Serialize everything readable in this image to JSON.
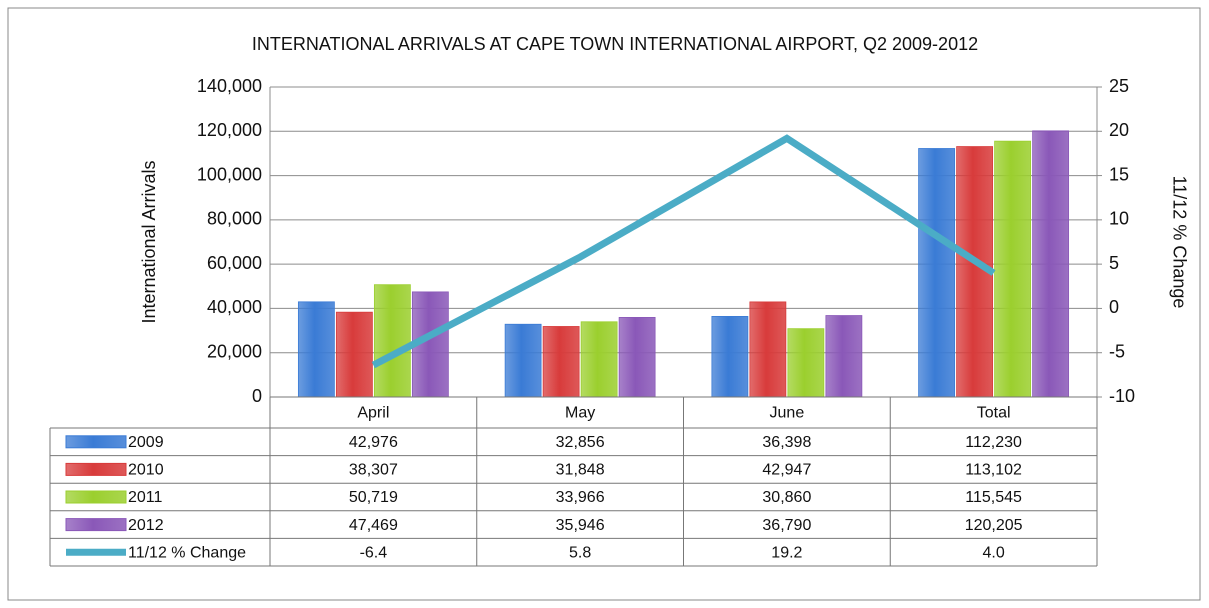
{
  "chart_data": {
    "type": "bar",
    "title": "INTERNATIONAL ARRIVALS AT CAPE TOWN INTERNATIONAL AIRPORT, Q2 2009-2012",
    "y_label": "International Arrivals",
    "y2_label": "11/12 % Change",
    "categories": [
      "April",
      "May",
      "June",
      "Total"
    ],
    "series": [
      {
        "name": "2009",
        "color": "#3a7bd5",
        "values": [
          42976,
          32856,
          36398,
          112230
        ],
        "value_labels": [
          "42,976",
          "32,856",
          "36,398",
          "112,230"
        ]
      },
      {
        "name": "2010",
        "color": "#d83b3b",
        "values": [
          38307,
          31848,
          42947,
          113102
        ],
        "value_labels": [
          "38,307",
          "31,848",
          "42,947",
          "113,102"
        ]
      },
      {
        "name": "2011",
        "color": "#9bcf2e",
        "values": [
          50719,
          33966,
          30860,
          115545
        ],
        "value_labels": [
          "50,719",
          "33,966",
          "30,860",
          "115,545"
        ]
      },
      {
        "name": "2012",
        "color": "#8a58b8",
        "values": [
          47469,
          35946,
          36790,
          120205
        ],
        "value_labels": [
          "47,469",
          "35,946",
          "36,790",
          "120,205"
        ]
      },
      {
        "name": "11/12 % Change",
        "color": "#4bacc6",
        "type": "line",
        "axis": "y2",
        "values": [
          -6.4,
          5.8,
          19.2,
          4.0
        ],
        "value_labels": [
          "-6.4",
          "5.8",
          "19.2",
          "4.0"
        ]
      }
    ],
    "ylim": [
      0,
      140000
    ],
    "yticks": [
      0,
      {
        "value": 20000,
        "label": "20,000"
      },
      {
        "value": 40000,
        "label": "40,000"
      },
      {
        "value": 60000,
        "label": "60,000"
      },
      {
        "value": 80000,
        "label": "80,000"
      },
      {
        "value": 100000,
        "label": "100,000"
      },
      {
        "value": 120000,
        "label": "120,000"
      },
      {
        "value": 140000,
        "label": "140,000"
      }
    ],
    "y2lim": [
      -10,
      25
    ],
    "y2ticks": [
      -10,
      -5,
      0,
      5,
      10,
      15,
      20,
      25
    ],
    "grid": true
  }
}
